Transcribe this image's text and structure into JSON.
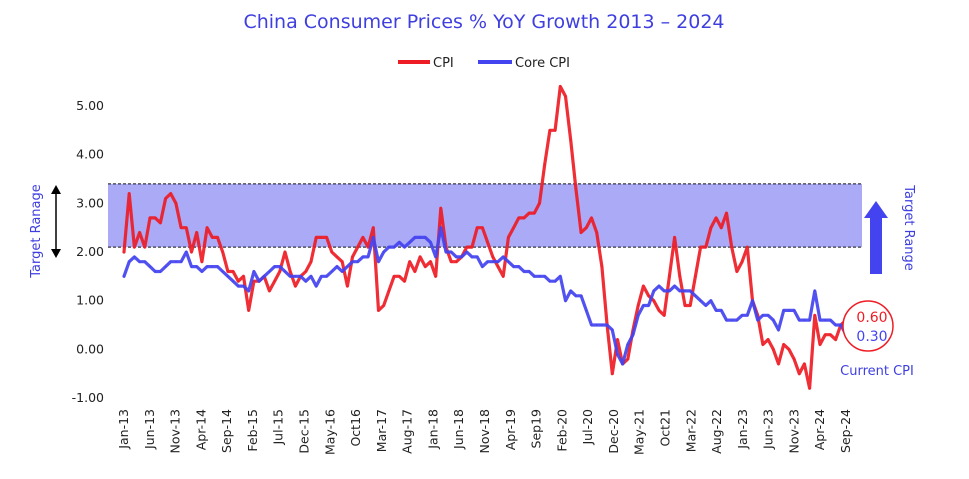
{
  "chart_data": {
    "type": "line",
    "title": "China Consumer Prices % YoY Growth 2013 – 2024",
    "ylim": [
      -1.0,
      5.0
    ],
    "yticks": [
      "5.00",
      "4.00",
      "3.00",
      "2.00",
      "1.00",
      "0.00",
      "-1.00"
    ],
    "xticks": [
      "Jan-13",
      "Jun-13",
      "Nov-13",
      "Apr-14",
      "Sep-14",
      "Feb-15",
      "Jul-15",
      "Dec-15",
      "May-16",
      "Oct16",
      "Mar-17",
      "Aug-17",
      "Jan-18",
      "Jun-18",
      "Nov-18",
      "Apr-19",
      "Sep19",
      "Feb-20",
      "Jul-20",
      "Dec-20",
      "May-21",
      "Oct21",
      "Mar-22",
      "Aug-22",
      "Jan-23",
      "Jun-23",
      "Nov-23",
      "Apr-24",
      "Sep-24"
    ],
    "grid": false,
    "legend_position": "top-center",
    "target_range": [
      2.1,
      3.4
    ],
    "target_range_label_left": "Target Ranage",
    "target_range_label_right": "Target Range",
    "current_label": "Current CPI",
    "current_values": [
      "0.60",
      "0.30"
    ],
    "series": [
      {
        "name": "CPI",
        "color": "#ee1c25",
        "values": [
          2.0,
          3.2,
          2.1,
          2.4,
          2.1,
          2.7,
          2.7,
          2.6,
          3.1,
          3.2,
          3.0,
          2.5,
          2.5,
          2.0,
          2.4,
          1.8,
          2.5,
          2.3,
          2.3,
          2.0,
          1.6,
          1.6,
          1.4,
          1.5,
          0.8,
          1.4,
          1.4,
          1.5,
          1.2,
          1.4,
          1.6,
          2.0,
          1.6,
          1.3,
          1.5,
          1.6,
          1.8,
          2.3,
          2.3,
          2.3,
          2.0,
          1.9,
          1.8,
          1.3,
          1.9,
          2.1,
          2.3,
          2.1,
          2.5,
          0.8,
          0.9,
          1.2,
          1.5,
          1.5,
          1.4,
          1.8,
          1.6,
          1.9,
          1.7,
          1.8,
          1.5,
          2.9,
          2.1,
          1.8,
          1.8,
          1.9,
          2.1,
          2.1,
          2.5,
          2.5,
          2.2,
          1.9,
          1.7,
          1.5,
          2.3,
          2.5,
          2.7,
          2.7,
          2.8,
          2.8,
          3.0,
          3.8,
          4.5,
          4.5,
          5.4,
          5.2,
          4.3,
          3.3,
          2.4,
          2.5,
          2.7,
          2.4,
          1.7,
          0.5,
          -0.5,
          0.2,
          -0.3,
          -0.2,
          0.4,
          0.9,
          1.3,
          1.1,
          1.0,
          0.8,
          0.7,
          1.5,
          2.3,
          1.5,
          0.9,
          0.9,
          1.5,
          2.1,
          2.1,
          2.5,
          2.7,
          2.5,
          2.8,
          2.1,
          1.6,
          1.8,
          2.1,
          1.0,
          0.7,
          0.1,
          0.2,
          0.0,
          -0.3,
          0.1,
          0.0,
          -0.2,
          -0.5,
          -0.3,
          -0.8,
          0.7,
          0.1,
          0.3,
          0.3,
          0.2,
          0.5,
          0.6
        ]
      },
      {
        "name": "Core CPI",
        "color": "#4343f0",
        "values": [
          1.5,
          1.8,
          1.9,
          1.8,
          1.8,
          1.7,
          1.6,
          1.6,
          1.7,
          1.8,
          1.8,
          1.8,
          2.0,
          1.7,
          1.7,
          1.6,
          1.7,
          1.7,
          1.7,
          1.6,
          1.5,
          1.4,
          1.3,
          1.3,
          1.2,
          1.6,
          1.4,
          1.5,
          1.6,
          1.7,
          1.7,
          1.6,
          1.5,
          1.5,
          1.5,
          1.4,
          1.5,
          1.3,
          1.5,
          1.5,
          1.6,
          1.7,
          1.6,
          1.7,
          1.8,
          1.8,
          1.9,
          1.9,
          2.3,
          1.8,
          2.0,
          2.1,
          2.1,
          2.2,
          2.1,
          2.2,
          2.3,
          2.3,
          2.3,
          2.2,
          1.9,
          2.5,
          2.0,
          2.0,
          1.9,
          1.9,
          2.0,
          1.9,
          1.9,
          1.7,
          1.8,
          1.8,
          1.8,
          1.9,
          1.8,
          1.7,
          1.7,
          1.6,
          1.6,
          1.5,
          1.5,
          1.5,
          1.4,
          1.4,
          1.5,
          1.0,
          1.2,
          1.1,
          1.1,
          0.8,
          0.5,
          0.5,
          0.5,
          0.5,
          0.4,
          -0.1,
          -0.3,
          0.1,
          0.3,
          0.7,
          0.9,
          0.9,
          1.2,
          1.3,
          1.2,
          1.2,
          1.3,
          1.2,
          1.2,
          1.2,
          1.1,
          1.0,
          0.9,
          1.0,
          0.8,
          0.8,
          0.6,
          0.6,
          0.6,
          0.7,
          0.7,
          1.0,
          0.6,
          0.7,
          0.7,
          0.6,
          0.4,
          0.8,
          0.8,
          0.8,
          0.6,
          0.6,
          0.6,
          1.2,
          0.6,
          0.6,
          0.6,
          0.5,
          0.5,
          0.3
        ]
      }
    ]
  }
}
